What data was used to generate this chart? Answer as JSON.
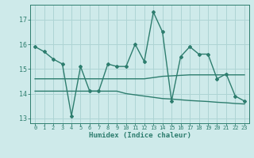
{
  "xlabel": "Humidex (Indice chaleur)",
  "x": [
    0,
    1,
    2,
    3,
    4,
    5,
    6,
    7,
    8,
    9,
    10,
    11,
    12,
    13,
    14,
    15,
    16,
    17,
    18,
    19,
    20,
    21,
    22,
    23
  ],
  "y_main": [
    15.9,
    15.7,
    15.4,
    15.2,
    13.1,
    15.1,
    14.1,
    14.1,
    15.2,
    15.1,
    15.1,
    16.0,
    15.3,
    17.3,
    16.5,
    13.7,
    15.5,
    15.9,
    15.6,
    15.6,
    14.6,
    14.8,
    13.9,
    13.7
  ],
  "y_reg1": [
    14.6,
    14.6,
    14.6,
    14.6,
    14.6,
    14.6,
    14.6,
    14.6,
    14.6,
    14.6,
    14.6,
    14.6,
    14.6,
    14.65,
    14.7,
    14.72,
    14.74,
    14.76,
    14.76,
    14.76,
    14.76,
    14.76,
    14.76,
    14.76
  ],
  "y_reg2": [
    14.1,
    14.1,
    14.1,
    14.1,
    14.1,
    14.1,
    14.1,
    14.1,
    14.1,
    14.1,
    14.0,
    13.95,
    13.9,
    13.85,
    13.8,
    13.78,
    13.75,
    13.72,
    13.7,
    13.68,
    13.65,
    13.63,
    13.6,
    13.58
  ],
  "line_color": "#2d7d6e",
  "bg_color": "#ceeaea",
  "grid_color": "#aed4d4",
  "ylim": [
    12.8,
    17.6
  ],
  "xlim": [
    -0.5,
    23.5
  ],
  "yticks": [
    13,
    14,
    15,
    16,
    17
  ]
}
